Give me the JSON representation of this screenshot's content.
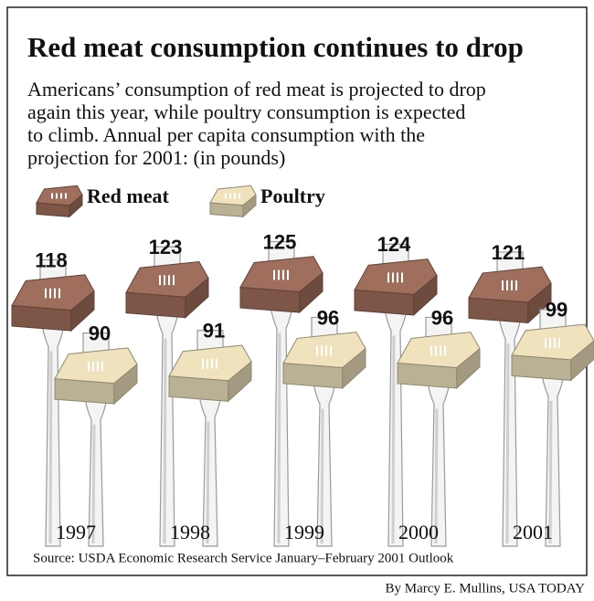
{
  "chart_data": {
    "type": "bar",
    "title": "Red meat consumption continues to drop",
    "subtitle": [
      "Americans’ consumption of red meat is projected to drop",
      "again this year, while poultry consumption is expected",
      "to climb. Annual per capita consumption with the",
      "projection for 2001: (in pounds)"
    ],
    "categories": [
      "1997",
      "1998",
      "1999",
      "2000",
      "2001"
    ],
    "series": [
      {
        "name": "Red meat",
        "color": "#a06e5c",
        "values": [
          118,
          123,
          125,
          124,
          121
        ]
      },
      {
        "name": "Poultry",
        "color": "#efe2bd",
        "values": [
          90,
          91,
          96,
          96,
          99
        ]
      }
    ],
    "source": "Source: USDA Economic Research Service January–February 2001 Outlook",
    "credit": "By Marcy E. Mullins, USA TODAY"
  }
}
